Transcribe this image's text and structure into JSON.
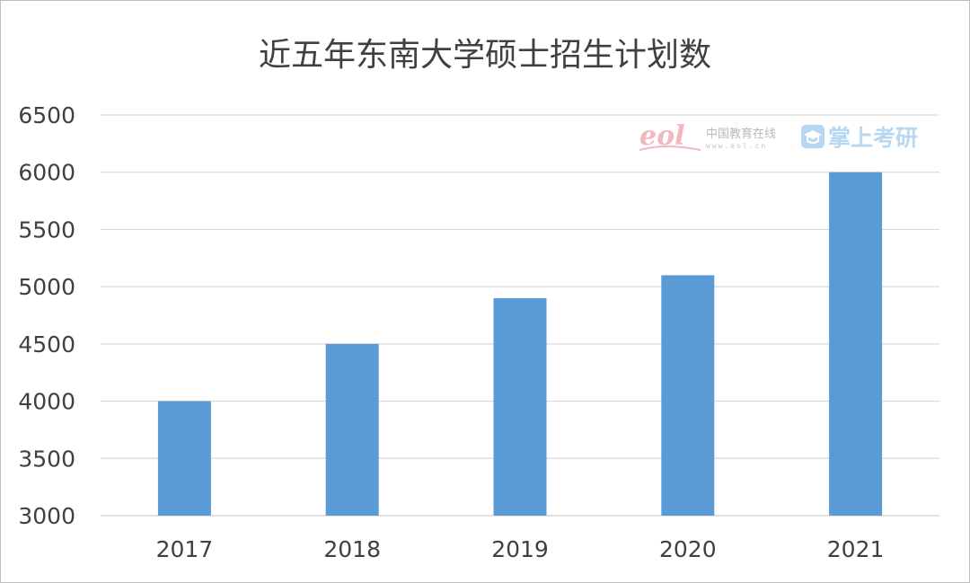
{
  "chart_data": {
    "type": "bar",
    "title": "近五年东南大学硕士招生计划数",
    "categories": [
      "2017",
      "2018",
      "2019",
      "2020",
      "2021"
    ],
    "values": [
      4000,
      4500,
      4900,
      5100,
      6000
    ],
    "ylim": [
      3000,
      6500
    ],
    "yticks": [
      3000,
      3500,
      4000,
      4500,
      5000,
      5500,
      6000,
      6500
    ],
    "grid": true,
    "legend": "none",
    "bar_color": "#5b9bd5",
    "xlabel": "",
    "ylabel": ""
  },
  "watermark": {
    "logo_text": "eol",
    "site_name": "中国教育在线",
    "site_url": "www.eol.cn",
    "brand_icon": "graduation-cap-icon",
    "brand_name": "掌上考研"
  }
}
